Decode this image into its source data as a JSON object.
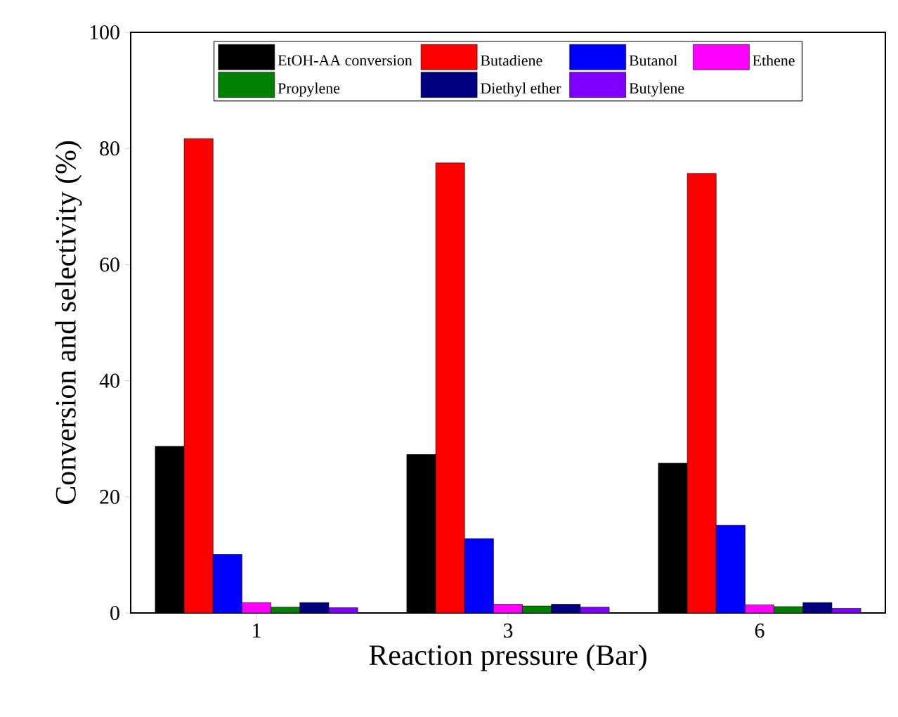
{
  "chart_data": {
    "type": "bar",
    "xlabel": "Reaction pressure (Bar)",
    "ylabel": "Conversion and selectivity (%)",
    "categories": [
      "1",
      "3",
      "6"
    ],
    "series": [
      {
        "name": "EtOH-AA conversion",
        "color": "#000000",
        "values": [
          28.7,
          27.3,
          25.8
        ]
      },
      {
        "name": "Butadiene",
        "color": "#ff0000",
        "values": [
          81.7,
          77.5,
          75.7
        ]
      },
      {
        "name": "Butanol",
        "color": "#0000ff",
        "values": [
          10.1,
          12.8,
          15.1
        ]
      },
      {
        "name": "Ethene",
        "color": "#ff00ff",
        "values": [
          1.8,
          1.5,
          1.4
        ]
      },
      {
        "name": "Propylene",
        "color": "#008000",
        "values": [
          1.0,
          1.2,
          1.1
        ]
      },
      {
        "name": "Diethyl ether",
        "color": "#000080",
        "values": [
          1.8,
          1.5,
          1.8
        ]
      },
      {
        "name": "Butylene",
        "color": "#8000ff",
        "values": [
          0.9,
          1.0,
          0.8
        ]
      }
    ],
    "ylim": [
      0,
      100
    ],
    "yticks": [
      0,
      20,
      40,
      60,
      80,
      100
    ],
    "legend": "top"
  }
}
